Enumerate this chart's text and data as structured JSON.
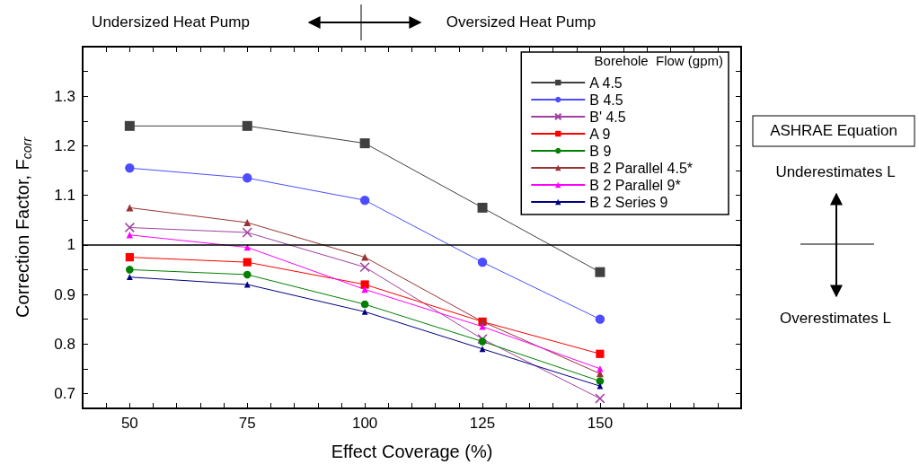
{
  "chart_data": {
    "type": "line",
    "xlabel": "Effect Coverage (%)",
    "ylabel": "Correction Factor, F$_{corr}$",
    "legend_title": "Borehole  Flow (gpm)",
    "x": [
      50,
      75,
      100,
      125,
      150
    ],
    "xlim": [
      40,
      180
    ],
    "xticks": [
      {
        "value": 45,
        "label": null
      },
      50,
      {
        "value": 55,
        "label": null
      },
      {
        "value": 60,
        "label": null
      },
      {
        "value": 65,
        "label": null
      },
      {
        "value": 70,
        "label": null
      },
      75,
      {
        "value": 80,
        "label": null
      },
      {
        "value": 85,
        "label": null
      },
      {
        "value": 90,
        "label": null
      },
      {
        "value": 95,
        "label": null
      },
      100,
      {
        "value": 105,
        "label": null
      },
      {
        "value": 110,
        "label": null
      },
      {
        "value": 115,
        "label": null
      },
      {
        "value": 120,
        "label": null
      },
      125,
      {
        "value": 130,
        "label": null
      },
      {
        "value": 135,
        "label": null
      },
      {
        "value": 140,
        "label": null
      },
      {
        "value": 145,
        "label": null
      },
      150,
      {
        "value": 155,
        "label": null
      },
      {
        "value": 160,
        "label": null
      },
      {
        "value": 165,
        "label": null
      },
      {
        "value": 170,
        "label": null
      },
      {
        "value": 175,
        "label": null
      }
    ],
    "ylim": [
      0.67,
      1.4
    ],
    "yticks": [
      0.7,
      {
        "value": 0.75,
        "label": null
      },
      0.8,
      {
        "value": 0.85,
        "label": null
      },
      0.9,
      {
        "value": 0.95,
        "label": null
      },
      1,
      {
        "value": 1.05,
        "label": null
      },
      1.1,
      {
        "value": 1.15,
        "label": null
      },
      1.2,
      {
        "value": 1.25,
        "label": null
      },
      1.3,
      {
        "value": 1.35,
        "label": null
      }
    ],
    "grid": false,
    "legend": "top right",
    "line_style": "solid",
    "ref_lines": [
      {
        "axis": "y",
        "value": 1,
        "color": "#000000"
      }
    ],
    "annotations": [
      "Undersized Heat Pump",
      "Oversized Heat Pump",
      "ASHRAE Equation",
      "Underestimates L",
      "Overestimates L"
    ],
    "series": [
      {
        "name": "A 4.5",
        "color": "#404040",
        "marker": "square",
        "values": [
          1.24,
          1.24,
          1.205,
          1.075,
          0.945
        ]
      },
      {
        "name": "B 4.5",
        "color": "#4d4dff",
        "marker": "circle",
        "values": [
          1.155,
          1.135,
          1.09,
          0.965,
          0.85
        ]
      },
      {
        "name": "B' 4.5",
        "color": "#a040a0",
        "marker": "cross",
        "values": [
          1.035,
          1.025,
          0.955,
          0.81,
          0.69
        ]
      },
      {
        "name": "A 9",
        "color": "#ff0000",
        "marker": "square",
        "values": [
          0.975,
          0.965,
          0.92,
          0.845,
          0.78
        ]
      },
      {
        "name": "B 9",
        "color": "#008000",
        "marker": "circle",
        "values": [
          0.95,
          0.94,
          0.88,
          0.805,
          0.725
        ]
      },
      {
        "name": "B 2 Parallel 4.5*",
        "color": "#993333",
        "marker": "triangle",
        "values": [
          1.075,
          1.045,
          0.975,
          0.845,
          0.74
        ]
      },
      {
        "name": "B 2 Parallel 9*",
        "color": "#ff00ff",
        "marker": "triangle",
        "values": [
          1.02,
          0.995,
          0.91,
          0.835,
          0.75
        ]
      },
      {
        "name": "B 2 Series 9",
        "color": "#000080",
        "marker": "triangle",
        "values": [
          0.935,
          0.92,
          0.865,
          0.79,
          0.715
        ]
      }
    ]
  }
}
